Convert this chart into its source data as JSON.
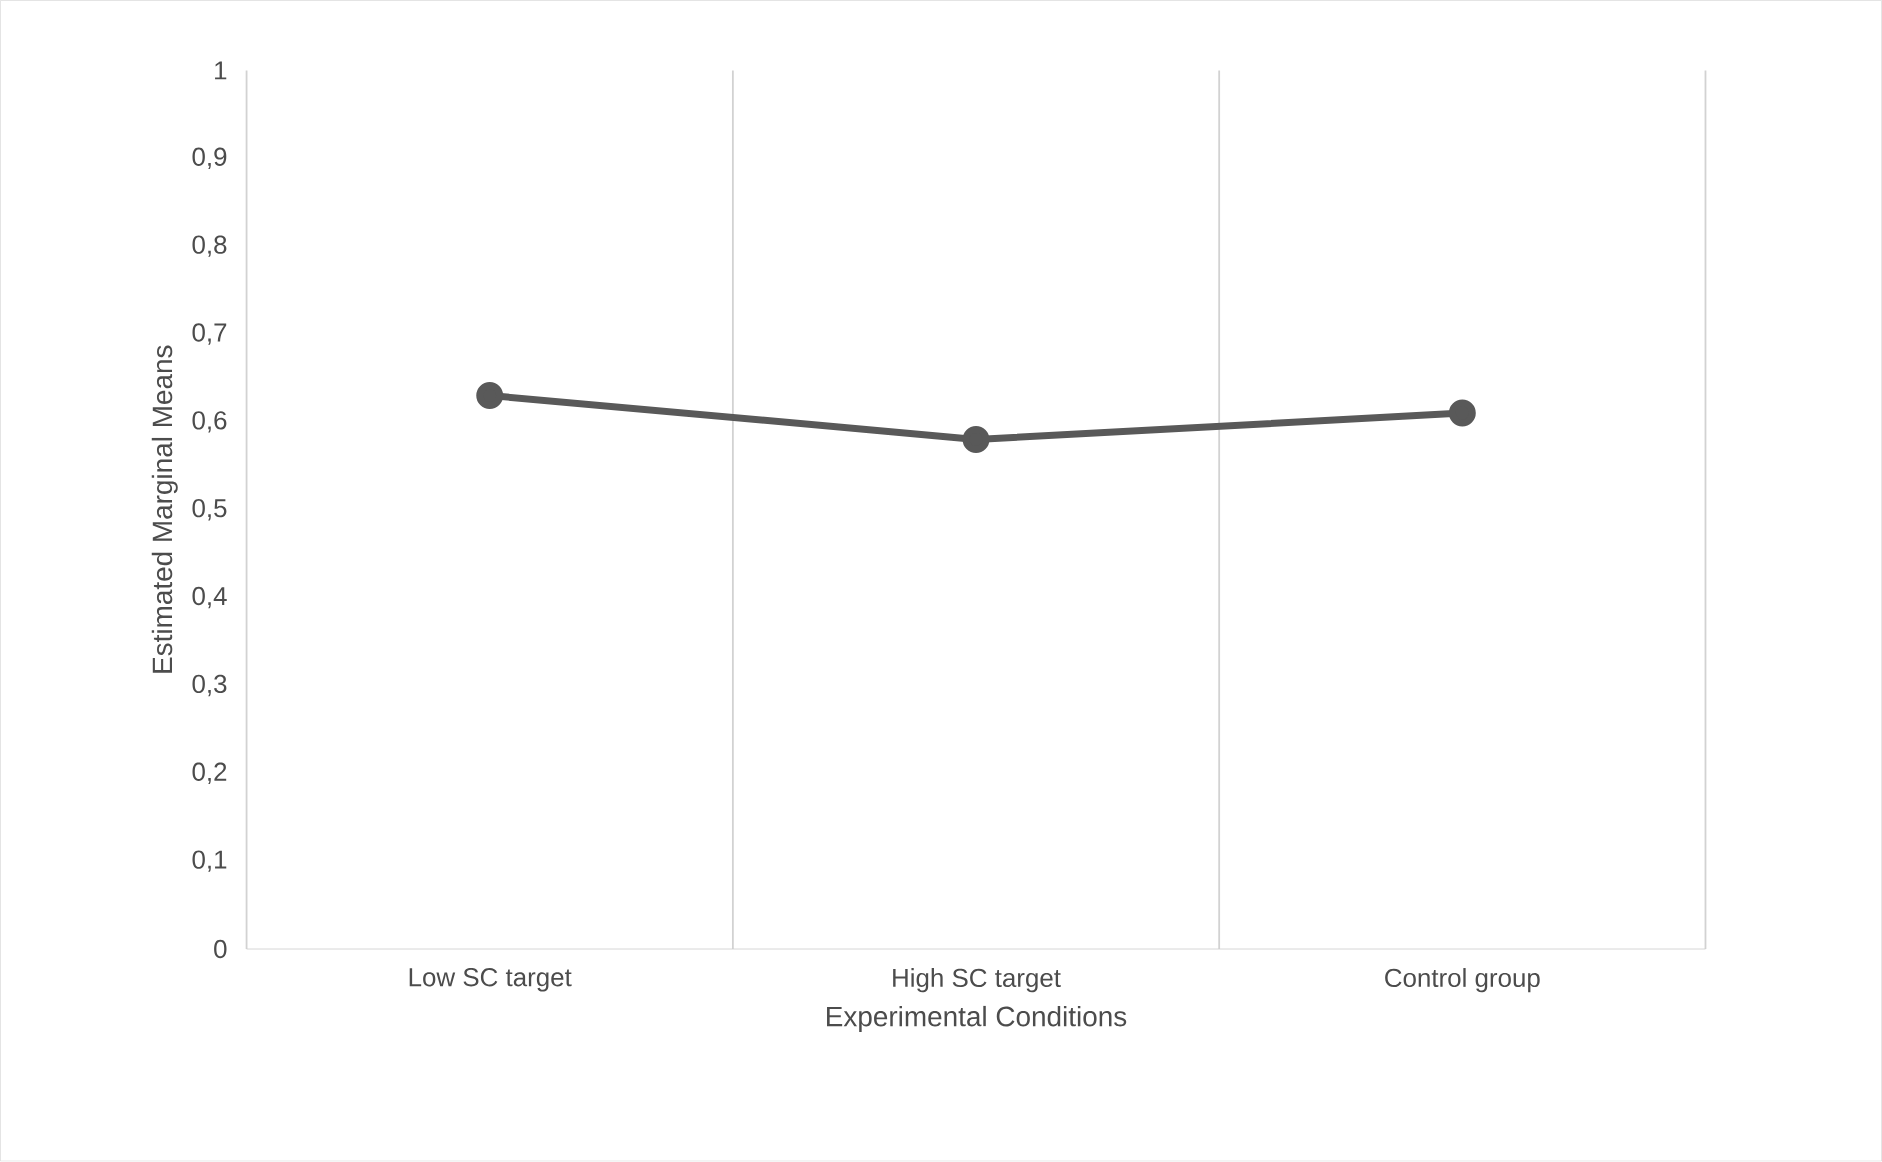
{
  "chart_data": {
    "type": "line",
    "xlabel": "Experimental Conditions",
    "ylabel": "Estimated Marginal Means",
    "categories": [
      "Low SC target",
      "High SC target",
      "Control group"
    ],
    "series": [
      {
        "color": "#595959",
        "values": [
          0.63,
          0.58,
          0.61
        ]
      }
    ],
    "ylim": [
      0,
      1
    ],
    "yticks": [
      0,
      {
        "value": 0.1,
        "label": "0,1"
      },
      {
        "value": 0.2,
        "label": "0,2"
      },
      {
        "value": 0.3,
        "label": "0,3"
      },
      {
        "value": 0.4,
        "label": "0,4"
      },
      {
        "value": 0.5,
        "label": "0,5"
      },
      {
        "value": 0.6,
        "label": "0,6"
      },
      {
        "value": 0.7,
        "label": "0,7"
      },
      {
        "value": 0.8,
        "label": "0,8"
      },
      {
        "value": 0.9,
        "label": "0,9"
      },
      1
    ],
    "grid": "x",
    "marker": "circle",
    "line_style": "solid"
  }
}
